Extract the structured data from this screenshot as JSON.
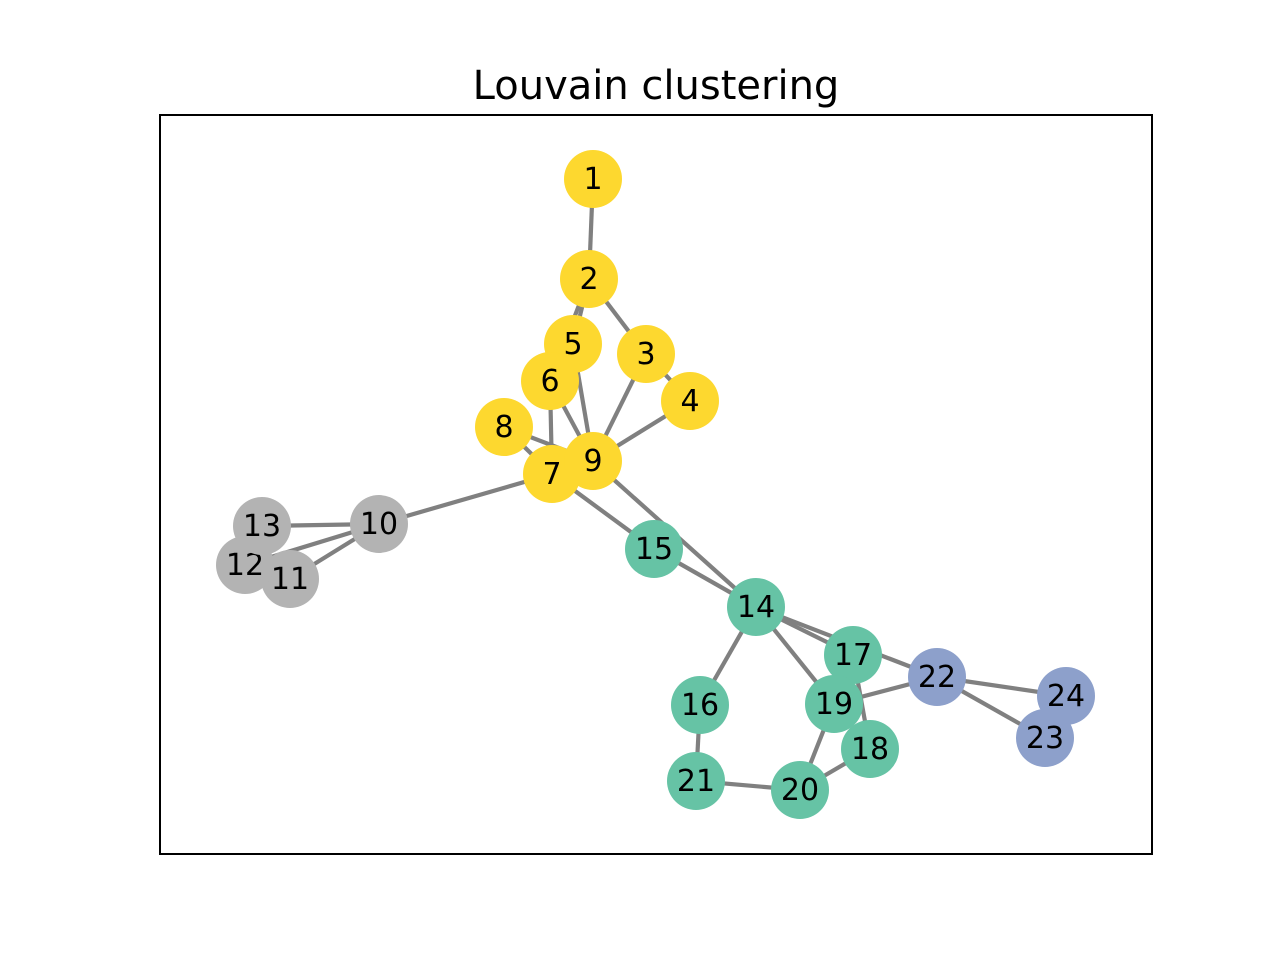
{
  "title": "Louvain clustering",
  "colors": {
    "edge": "#808080",
    "frame": "#000000",
    "clusters": {
      "yellow": "#FDD82F",
      "teal": "#66C3A5",
      "grey": "#B3B3B3",
      "blue": "#8DA0CB"
    }
  },
  "nodes": [
    {
      "id": "1",
      "cluster": "yellow"
    },
    {
      "id": "2",
      "cluster": "yellow"
    },
    {
      "id": "3",
      "cluster": "yellow"
    },
    {
      "id": "4",
      "cluster": "yellow"
    },
    {
      "id": "5",
      "cluster": "yellow"
    },
    {
      "id": "6",
      "cluster": "yellow"
    },
    {
      "id": "7",
      "cluster": "yellow"
    },
    {
      "id": "8",
      "cluster": "yellow"
    },
    {
      "id": "9",
      "cluster": "yellow"
    },
    {
      "id": "10",
      "cluster": "grey"
    },
    {
      "id": "11",
      "cluster": "grey"
    },
    {
      "id": "12",
      "cluster": "grey"
    },
    {
      "id": "13",
      "cluster": "grey"
    },
    {
      "id": "14",
      "cluster": "teal"
    },
    {
      "id": "15",
      "cluster": "teal"
    },
    {
      "id": "16",
      "cluster": "teal"
    },
    {
      "id": "17",
      "cluster": "teal"
    },
    {
      "id": "18",
      "cluster": "teal"
    },
    {
      "id": "19",
      "cluster": "teal"
    },
    {
      "id": "20",
      "cluster": "teal"
    },
    {
      "id": "21",
      "cluster": "teal"
    },
    {
      "id": "22",
      "cluster": "blue"
    },
    {
      "id": "23",
      "cluster": "blue"
    },
    {
      "id": "24",
      "cluster": "blue"
    }
  ],
  "edges": [
    [
      "1",
      "2"
    ],
    [
      "2",
      "3"
    ],
    [
      "2",
      "5"
    ],
    [
      "2",
      "6"
    ],
    [
      "3",
      "4"
    ],
    [
      "3",
      "9"
    ],
    [
      "4",
      "9"
    ],
    [
      "5",
      "9"
    ],
    [
      "6",
      "7"
    ],
    [
      "6",
      "9"
    ],
    [
      "8",
      "9"
    ],
    [
      "8",
      "7"
    ],
    [
      "7",
      "10"
    ],
    [
      "7",
      "15"
    ],
    [
      "9",
      "14"
    ],
    [
      "10",
      "11"
    ],
    [
      "10",
      "12"
    ],
    [
      "10",
      "13"
    ],
    [
      "14",
      "15"
    ],
    [
      "14",
      "16"
    ],
    [
      "14",
      "17"
    ],
    [
      "14",
      "19"
    ],
    [
      "14",
      "22"
    ],
    [
      "16",
      "21"
    ],
    [
      "21",
      "20"
    ],
    [
      "20",
      "19"
    ],
    [
      "20",
      "18"
    ],
    [
      "17",
      "19"
    ],
    [
      "17",
      "18"
    ],
    [
      "19",
      "22"
    ],
    [
      "22",
      "23"
    ],
    [
      "22",
      "24"
    ]
  ]
}
